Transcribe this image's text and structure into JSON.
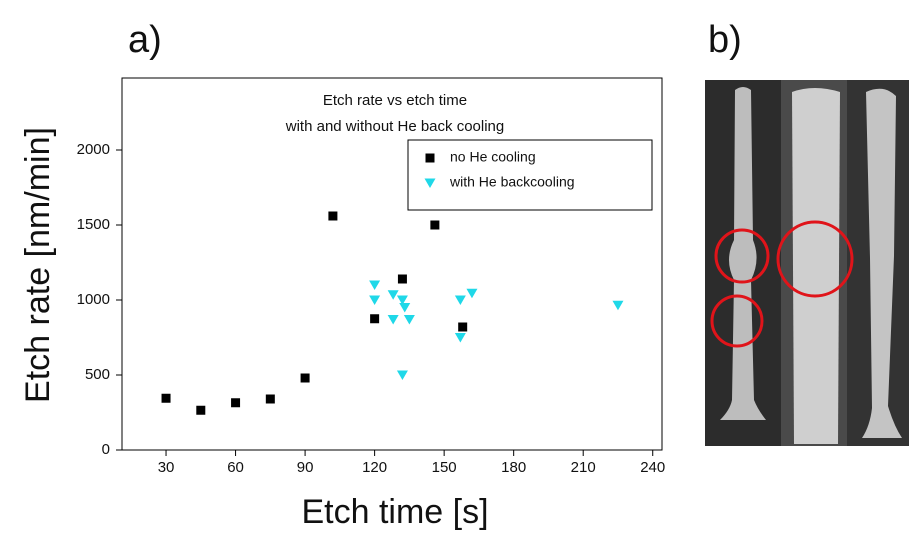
{
  "panel_labels": {
    "a": "a)",
    "b": "b)"
  },
  "chart_data": {
    "type": "scatter",
    "title": [
      "Etch rate vs etch time",
      "with and without He back cooling"
    ],
    "x_label": "Etch time [s]",
    "y_label": "Etch rate [nm/min]",
    "xlim": [
      11,
      244
    ],
    "ylim": [
      0,
      2480
    ],
    "xticks": [
      30,
      60,
      90,
      120,
      150,
      180,
      210,
      240
    ],
    "yticks": [
      0,
      500,
      1000,
      1500,
      2000
    ],
    "legend": "upper right",
    "series": [
      {
        "name": "no He cooling",
        "color": "#000000",
        "marker": "square",
        "x": [
          30,
          45,
          60,
          75,
          90,
          102,
          120,
          132,
          146,
          158
        ],
        "values": [
          345,
          265,
          315,
          340,
          480,
          1560,
          875,
          1140,
          1500,
          820
        ]
      },
      {
        "name": "with He backcooling",
        "color": "#1fd8e8",
        "marker": "triangle-down",
        "x": [
          120,
          120,
          128,
          128,
          132,
          133,
          135,
          132,
          157,
          157,
          162,
          225
        ],
        "values": [
          1100,
          1000,
          1035,
          870,
          1000,
          950,
          870,
          500,
          1000,
          750,
          1045,
          965
        ]
      }
    ]
  }
}
